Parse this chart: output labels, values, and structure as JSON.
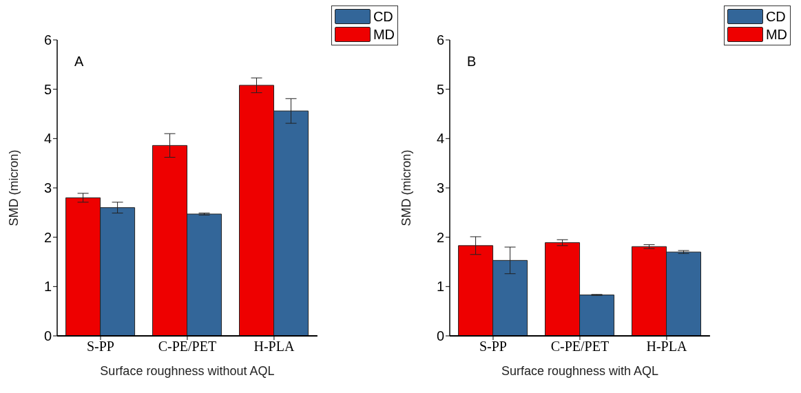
{
  "chart_data": [
    {
      "type": "bar",
      "categories": [
        "S-PP",
        "C-PE/PET",
        "H-PLA"
      ],
      "xlabel": "Surface roughness without AQL",
      "ylabel": "SMD (micron)",
      "ylim": [
        0,
        6
      ],
      "yticks": [
        0,
        1,
        2,
        3,
        4,
        5,
        6
      ],
      "legend": "top right",
      "annotations": [
        "A"
      ],
      "series": [
        {
          "name": "MD",
          "color": "#ee0000",
          "values": [
            2.8,
            3.86,
            5.08
          ],
          "errors": [
            0.09,
            0.24,
            0.15
          ]
        },
        {
          "name": "CD",
          "color": "#336699",
          "values": [
            2.6,
            2.47,
            4.56
          ],
          "errors": [
            0.11,
            0.02,
            0.25
          ]
        }
      ]
    },
    {
      "type": "bar",
      "categories": [
        "S-PP",
        "C-PE/PET",
        "H-PLA"
      ],
      "xlabel": "Surface roughness with AQL",
      "ylabel": "SMD (micron)",
      "ylim": [
        0,
        6
      ],
      "yticks": [
        0,
        1,
        2,
        3,
        4,
        5,
        6
      ],
      "legend": "top right",
      "annotations": [
        "B"
      ],
      "series": [
        {
          "name": "MD",
          "color": "#ee0000",
          "values": [
            1.83,
            1.89,
            1.81
          ],
          "errors": [
            0.18,
            0.06,
            0.04
          ]
        },
        {
          "name": "CD",
          "color": "#336699",
          "values": [
            1.53,
            0.83,
            1.7
          ],
          "errors": [
            0.27,
            0.01,
            0.03
          ]
        }
      ]
    }
  ]
}
